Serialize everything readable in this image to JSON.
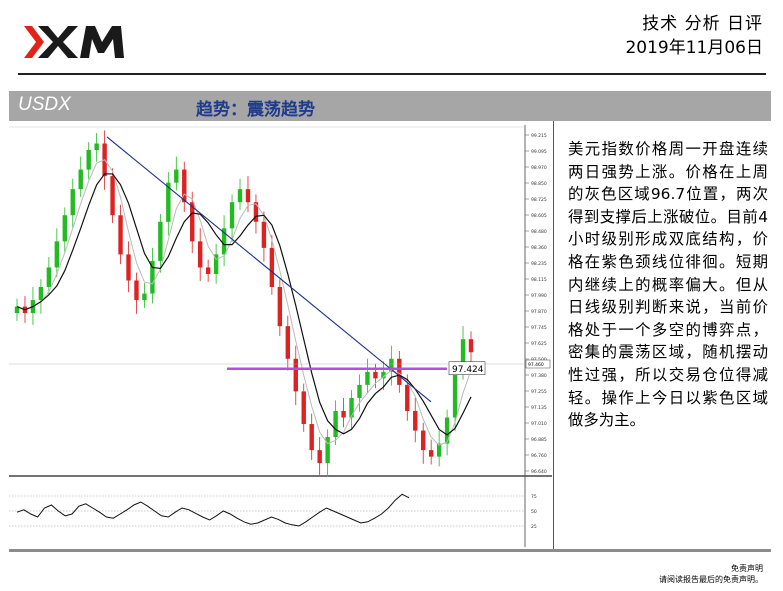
{
  "brand": {
    "logo_text": "XM",
    "accent": "#e2231a",
    "dark": "#1a1a1a"
  },
  "header": {
    "section": "技术 分析 日评",
    "date": "2019年11月06日"
  },
  "banner": {
    "symbol": "USDX",
    "trend": "趋势：震荡趋势"
  },
  "commentary": "美元指数价格周一开盘连续两日强势上涨。价格在上周的灰色区域96.7位置，两次得到支撑后上涨破位。目前4小时级别形成双底结构，价格在紫色颈线位徘徊。短期内继续上的概率偏大。但从日线级别判断来说，当前价格处于一个多空的博弈点，密集的震荡区域，随机摆动性过强，所以交易仓位得减轻。操作上今日以紫色区域做多为主。",
  "footer": {
    "line1": "免责声明",
    "line2": "请阅读报告最后的免责声明。"
  },
  "chart_data": {
    "type": "candlestick",
    "y_ticks": [
      "99.215",
      "99.095",
      "98.970",
      "98.850",
      "98.725",
      "98.605",
      "98.480",
      "98.360",
      "98.235",
      "98.115",
      "97.990",
      "97.870",
      "97.745",
      "97.625",
      "97.500",
      "97.380",
      "97.255",
      "97.135",
      "97.010",
      "96.885",
      "96.760",
      "96.640"
    ],
    "ylim": [
      96.64,
      99.215
    ],
    "current_price": "97.460",
    "neckline_label": "97.424",
    "neckline_value": 97.424,
    "neckline_color": "#b44ee0",
    "trendline": {
      "start": 99.2,
      "end": 97.17,
      "color": "#1f2f8f"
    },
    "up_color": "#22bb22",
    "down_color": "#dd2222",
    "close": [
      97.9,
      97.85,
      97.95,
      98.05,
      98.2,
      98.4,
      98.6,
      98.8,
      98.95,
      99.1,
      99.15,
      98.9,
      98.6,
      98.3,
      98.1,
      97.95,
      98.0,
      98.25,
      98.55,
      98.85,
      98.95,
      98.7,
      98.4,
      98.2,
      98.15,
      98.3,
      98.5,
      98.7,
      98.8,
      98.7,
      98.55,
      98.35,
      98.05,
      97.75,
      97.5,
      97.25,
      97.0,
      96.8,
      96.7,
      96.9,
      97.1,
      97.05,
      97.2,
      97.3,
      97.4,
      97.35,
      97.4,
      97.5,
      97.3,
      97.1,
      96.95,
      96.8,
      96.75,
      96.85,
      97.05,
      97.4,
      97.65,
      97.55
    ],
    "oscillator": {
      "ticks": [
        "75",
        "50",
        "25"
      ],
      "levels": [
        75,
        50,
        25
      ],
      "values": [
        48,
        52,
        45,
        40,
        55,
        60,
        50,
        42,
        45,
        58,
        62,
        55,
        48,
        40,
        38,
        45,
        52,
        60,
        65,
        58,
        50,
        42,
        40,
        48,
        55,
        52,
        46,
        40,
        35,
        42,
        50,
        45,
        38,
        32,
        28,
        30,
        35,
        40,
        36,
        30,
        27,
        25,
        32,
        40,
        48,
        55,
        50,
        45,
        40,
        35,
        30,
        32,
        38,
        45,
        55,
        68,
        78,
        72
      ]
    }
  }
}
